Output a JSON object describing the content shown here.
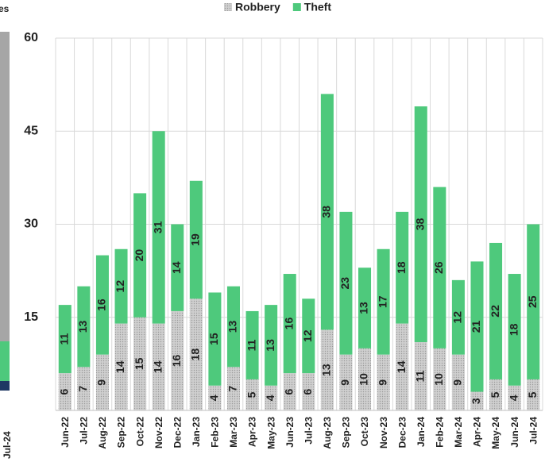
{
  "cropped_neighbor": {
    "title_fragment": "es",
    "last_label": "Jul-24"
  },
  "chart_data": {
    "type": "stacked_bar",
    "categories": [
      "Jun-22",
      "Jul-22",
      "Aug-22",
      "Sep-22",
      "Oct-22",
      "Nov-22",
      "Dec-22",
      "Jan-23",
      "Feb-23",
      "Mar-23",
      "Apr-23",
      "May-23",
      "Jun-23",
      "Jul-23",
      "Aug-23",
      "Sep-23",
      "Oct-23",
      "Nov-23",
      "Dec-23",
      "Jan-24",
      "Feb-24",
      "Mar-24",
      "Apr-24",
      "May-24",
      "Jun-24",
      "Jul-24"
    ],
    "series": [
      {
        "name": "Robbery",
        "color": "#cfcfcf",
        "values": [
          6,
          7,
          9,
          14,
          15,
          14,
          16,
          18,
          4,
          7,
          5,
          4,
          6,
          6,
          13,
          9,
          10,
          9,
          14,
          11,
          10,
          9,
          3,
          5,
          4,
          5
        ]
      },
      {
        "name": "Theft",
        "color": "#4ec97c",
        "values": [
          11,
          13,
          16,
          12,
          20,
          31,
          14,
          19,
          15,
          13,
          11,
          13,
          16,
          12,
          38,
          23,
          13,
          17,
          18,
          38,
          26,
          12,
          21,
          22,
          18,
          25
        ]
      }
    ],
    "ylim": [
      0,
      60
    ],
    "yticks": [
      15,
      30,
      45,
      60
    ],
    "grid": true,
    "legend": "top"
  }
}
